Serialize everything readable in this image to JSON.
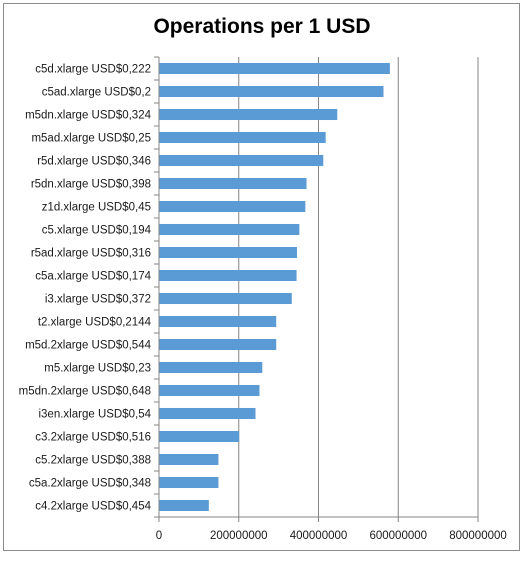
{
  "chart_data": {
    "type": "bar",
    "orientation": "horizontal",
    "title": "Operations per 1 USD",
    "xlabel": "",
    "ylabel": "",
    "categories": [
      "c5d.xlarge USD$0,222",
      "c5ad.xlarge USD$0,2",
      "m5dn.xlarge USD$0,324",
      "m5ad.xlarge USD$0,25",
      "r5d.xlarge USD$0,346",
      "r5dn.xlarge USD$0,398",
      "z1d.xlarge USD$0,45",
      "c5.xlarge USD$0,194",
      "r5ad.xlarge USD$0,316",
      "c5a.xlarge USD$0,174",
      "i3.xlarge USD$0,372",
      "t2.xlarge USD$0,2144",
      "m5d.2xlarge USD$0,544",
      "m5.xlarge USD$0,23",
      "m5dn.2xlarge USD$0,648",
      "i3en.xlarge USD$0,54",
      "c3.2xlarge USD$0,516",
      "c5.2xlarge USD$0,388",
      "c5a.2xlarge USD$0,348",
      "c4.2xlarge USD$0,454"
    ],
    "values": [
      579000000,
      563000000,
      447000000,
      418000000,
      412000000,
      370000000,
      367000000,
      352000000,
      346000000,
      345000000,
      333000000,
      294000000,
      294000000,
      259000000,
      252000000,
      242000000,
      201000000,
      149000000,
      149000000,
      125000000
    ],
    "xlim": [
      0,
      800000000
    ],
    "xticks": [
      0,
      200000000,
      400000000,
      600000000,
      800000000
    ],
    "xtick_labels": [
      "0",
      "200000000",
      "400000000",
      "600000000",
      "800000000"
    ],
    "grid": "vertical",
    "legend": "none",
    "bar_color": "#5b9bd5"
  }
}
